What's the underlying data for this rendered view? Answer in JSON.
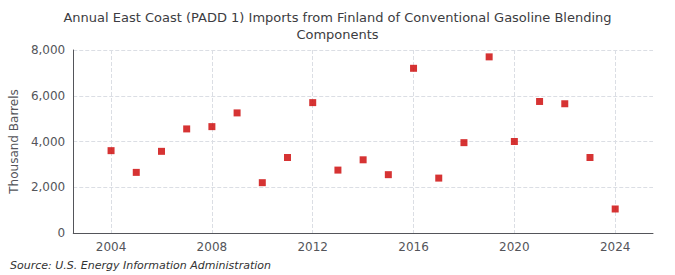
{
  "chart_data": {
    "type": "scatter",
    "title": "Annual East Coast (PADD 1) Imports from Finland of Conventional Gasoline Blending\nComponents",
    "ylabel": "Thousand Barrels",
    "annotations": [
      "Source: U.S. Energy Information Administration"
    ],
    "x": [
      2004,
      2005,
      2006,
      2007,
      2008,
      2009,
      2010,
      2011,
      2012,
      2013,
      2014,
      2015,
      2016,
      2017,
      2018,
      2019,
      2020,
      2021,
      2022,
      2023,
      2024
    ],
    "values": [
      3600,
      2650,
      3570,
      4550,
      4650,
      5250,
      2200,
      3300,
      5700,
      2750,
      3200,
      2550,
      7200,
      2400,
      3950,
      7700,
      4000,
      5750,
      5650,
      3300,
      1050
    ],
    "color": "#cc0000",
    "marker": "square",
    "xlim": [
      2002.5,
      2025.5
    ],
    "xticks": [
      2004,
      2008,
      2012,
      2016,
      2020,
      2024
    ],
    "ylim": [
      0,
      8000
    ],
    "yticks": [
      0,
      {
        "value": 2000,
        "label": "2,000"
      },
      {
        "value": 4000,
        "label": "4,000"
      },
      {
        "value": 6000,
        "label": "6,000"
      },
      {
        "value": 8000,
        "label": "8,000"
      }
    ],
    "grid": true
  }
}
